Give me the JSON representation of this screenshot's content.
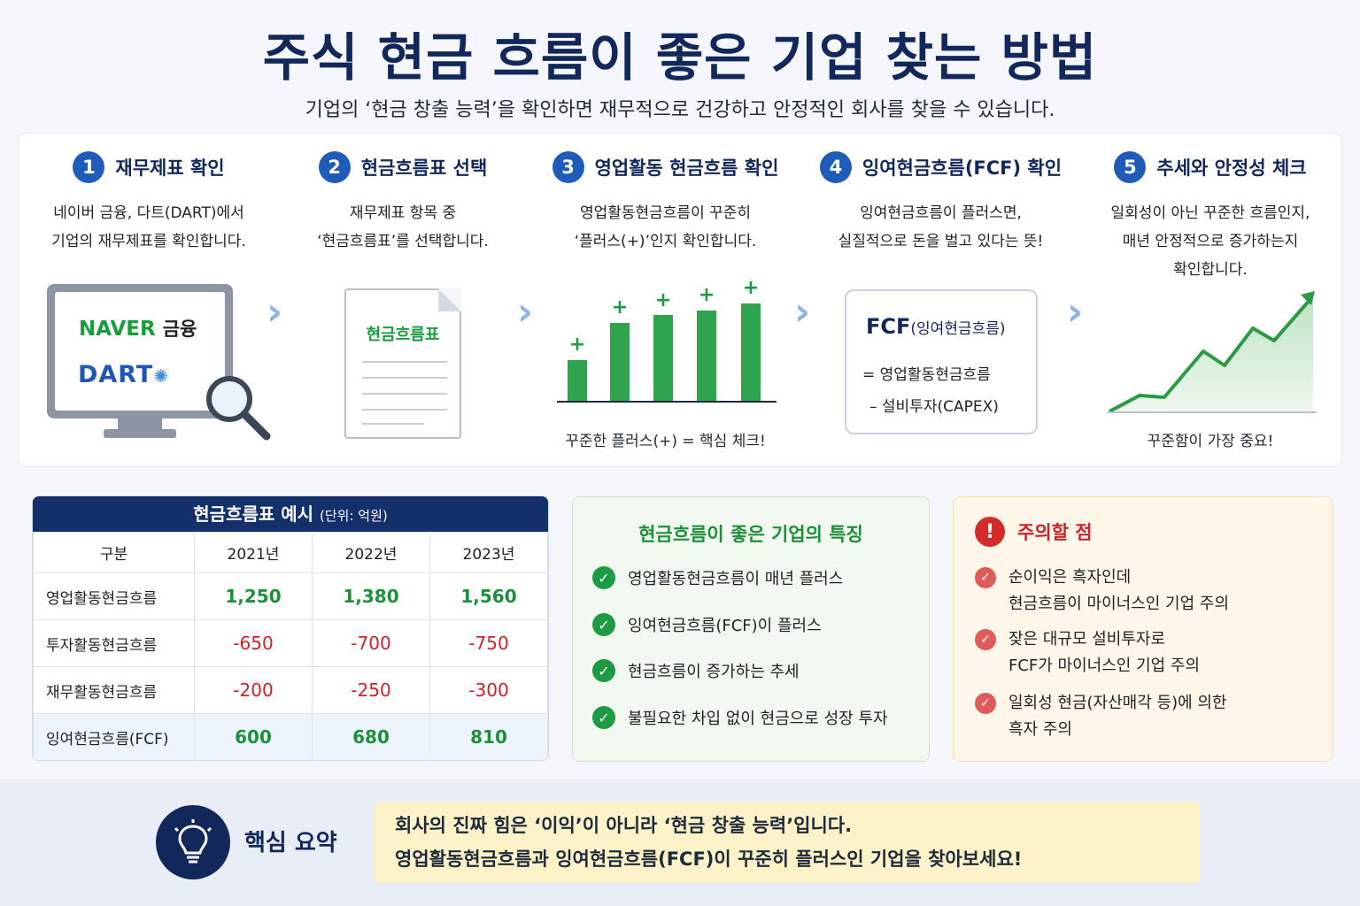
{
  "title": "주식 현금 흐름이 좋은 기업 찾는 방법",
  "subtitle": "기업의 ‘현금 창출 능력’을 확인하면 재무적으로 건강하고 안정적인 회사를 찾을 수 있습니다.",
  "steps": [
    {
      "num": "1",
      "title": "재무제표 확인",
      "desc": [
        "네이버 금융, 다트(DART)에서",
        "기업의 재무제표를 확인합니다."
      ],
      "naver": "NAVER",
      "naver_k": "금융",
      "dart": "DART"
    },
    {
      "num": "2",
      "title": "현금흐름표 선택",
      "desc": [
        "재무제표 항목 중",
        "‘현금흐름표’를 선택합니다."
      ],
      "doc_label": "현금흐름표"
    },
    {
      "num": "3",
      "title": "영업활동 현금흐름 확인",
      "desc": [
        "영업활동현금흐름이 꾸준히",
        "‘플러스(+)’인지 확인합니다."
      ],
      "plus": "+",
      "note": "꾸준한 플러스(+) = 핵심 체크!"
    },
    {
      "num": "4",
      "title": "잉여현금흐름(FCF) 확인",
      "desc": [
        "잉여현금흐름이 플러스면,",
        "실질적으로 돈을 벌고 있다는 뜻!"
      ],
      "fcf_big": "FCF",
      "fcf_small": "(잉여현금흐름)",
      "fcf_line1": "= 영업활동현금흐름",
      "fcf_line2": "– 설비투자(CAPEX)"
    },
    {
      "num": "5",
      "title": "추세와 안정성 체크",
      "desc": [
        "일회성이 아닌 꾸준한 흐름인지,",
        "매년 안정적으로 증가하는지",
        "확인합니다."
      ],
      "note": "꾸준함이 가장 중요!"
    }
  ],
  "table": {
    "title": "현금흐름표 예시",
    "unit": "(단위: 억원)",
    "headers": [
      "구분",
      "2021년",
      "2022년",
      "2023년"
    ],
    "rows": [
      {
        "label": "영업활동현금흐름",
        "values": [
          "1,250",
          "1,380",
          "1,560"
        ]
      },
      {
        "label": "투자활동현금흐름",
        "values": [
          "-650",
          "-700",
          "-750"
        ]
      },
      {
        "label": "재무활동현금흐름",
        "values": [
          "-200",
          "-250",
          "-300"
        ]
      },
      {
        "label": "잉여현금흐름(FCF)",
        "values": [
          "600",
          "680",
          "810"
        ]
      }
    ]
  },
  "good": {
    "title": "현금흐름이 좋은 기업의 특징",
    "items": [
      "영업활동현금흐름이 매년 플러스",
      "잉여현금흐름(FCF)이 플러스",
      "현금흐름이 증가하는 추세",
      "불필요한 차입 없이 현금으로 성장 투자"
    ]
  },
  "warn": {
    "icon": "!",
    "title": "주의할 점",
    "items": [
      [
        "순이익은 흑자인데",
        "현금흐름이 마이너스인 기업 주의"
      ],
      [
        "잦은 대규모 설비투자로",
        "FCF가 마이너스인 기업 주의"
      ],
      [
        "일회성 현금(자산매각 등)에 의한",
        "흑자 주의"
      ]
    ]
  },
  "summary": {
    "label": "핵심 요약",
    "line1": "회사의 진짜 힘은 ‘이익’이 아니라 ‘현금 창출 능력’입니다.",
    "line2": "영업활동현금흐름과 잉여현금흐름(FCF)이 꾸준히 플러스인 기업을 찾아보세요!"
  },
  "icons": {
    "check": "✓",
    "arrow": "›"
  },
  "colors": {
    "navy": "#12285a",
    "blue": "#1f5bb8",
    "green": "#1e9a45",
    "red": "#c8242b"
  }
}
